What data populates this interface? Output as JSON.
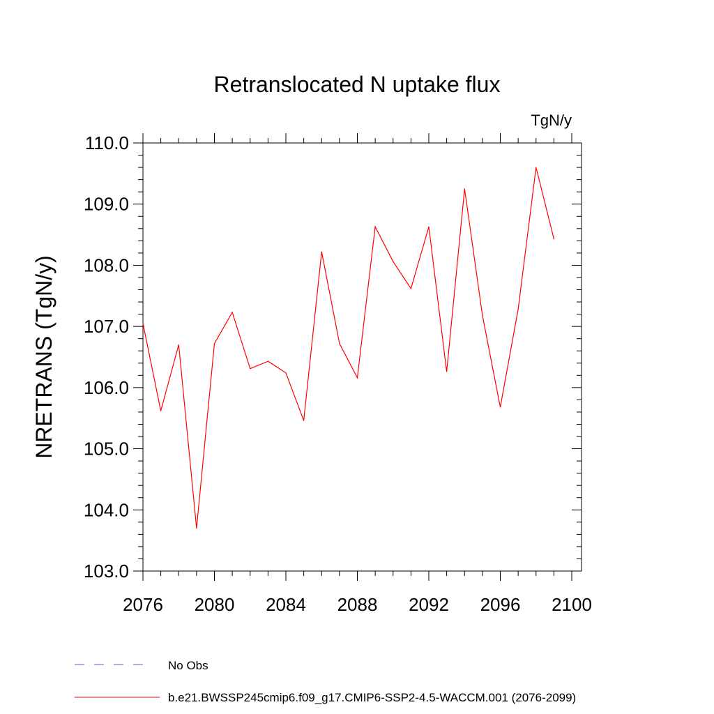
{
  "chart_data": {
    "type": "line",
    "title": "Retranslocated N uptake flux",
    "units_label": "TgN/y",
    "ylabel": "NRETRANS  (TgN/y)",
    "xlabel": "",
    "xlim": [
      2076,
      2100
    ],
    "ylim": [
      103.0,
      110.0
    ],
    "x_ticks": [
      2076,
      2080,
      2084,
      2088,
      2092,
      2096,
      2100
    ],
    "x_tick_labels": [
      "2076",
      "2080",
      "2084",
      "2088",
      "2092",
      "2096",
      "2100"
    ],
    "y_ticks": [
      103,
      104,
      105,
      106,
      107,
      108,
      109,
      110
    ],
    "y_tick_labels": [
      "103.0",
      "104.0",
      "105.0",
      "106.0",
      "107.0",
      "108.0",
      "109.0",
      "110.0"
    ],
    "grid": false,
    "legend_position": "bottom-left",
    "series": [
      {
        "name": "b.e21.BWSSP245cmip6.f09_g17.CMIP6-SSP2-4.5-WACCM.001 (2076-2099)",
        "color": "#ff0000",
        "line_style": "solid",
        "x": [
          2076,
          2077,
          2078,
          2079,
          2080,
          2081,
          2082,
          2083,
          2084,
          2085,
          2086,
          2087,
          2088,
          2089,
          2090,
          2091,
          2092,
          2093,
          2094,
          2095,
          2096,
          2097,
          2098,
          2099
        ],
        "values": [
          107.05,
          105.62,
          106.7,
          103.7,
          106.72,
          107.23,
          106.31,
          106.43,
          106.24,
          105.46,
          108.22,
          106.72,
          106.16,
          108.63,
          108.06,
          107.62,
          108.63,
          106.26,
          109.25,
          107.18,
          105.68,
          107.28,
          109.6,
          108.43
        ]
      }
    ],
    "legend": [
      {
        "label": "No Obs",
        "color": "#6a5acd",
        "line_style": "dashed"
      },
      {
        "label": "b.e21.BWSSP245cmip6.f09_g17.CMIP6-SSP2-4.5-WACCM.001 (2076-2099)",
        "color": "#ff0000",
        "line_style": "solid"
      }
    ]
  }
}
